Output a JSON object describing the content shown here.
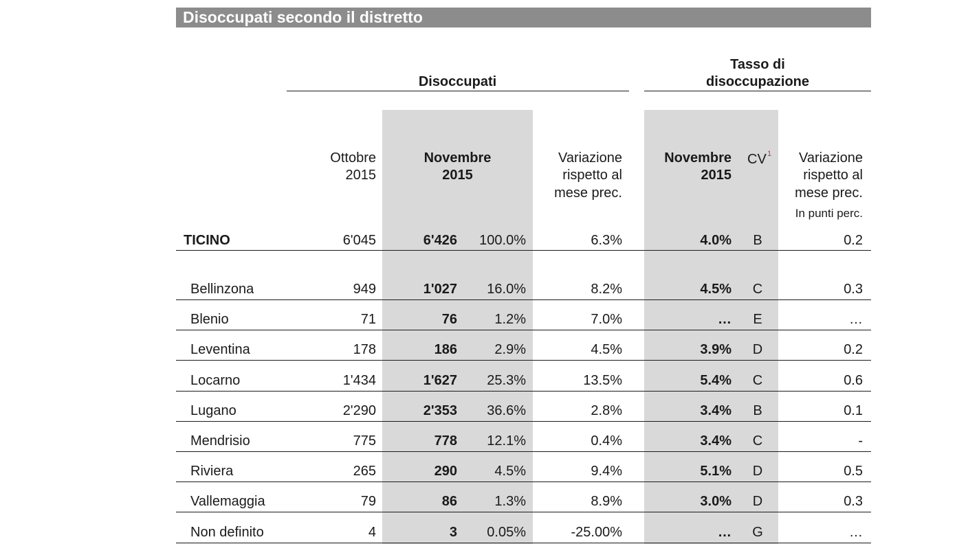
{
  "title": "Disoccupati secondo il distretto",
  "groups": {
    "disoccupati": "Disoccupati",
    "tasso_line1": "Tasso di",
    "tasso_line2": "disoccupazione"
  },
  "headers": {
    "ott_l1": "Ottobre",
    "ott_l2": "2015",
    "nov_l1": "Novembre",
    "nov_l2": "2015",
    "var_l1": "Variazione",
    "var_l2": "rispetto al",
    "var_l3": "mese prec.",
    "tnov_l1": "Novembre",
    "tnov_l2": "2015",
    "cv": "CV",
    "cv_sup": "1",
    "tvar_l1": "Variazione",
    "tvar_l2": "rispetto al",
    "tvar_l3": "mese prec.",
    "tvar_l4": "In punti perc."
  },
  "total": {
    "name": "TICINO",
    "ott": "6'045",
    "nov": "6'426",
    "pct": "100.0%",
    "var": "6.3%",
    "rate": "4.0%",
    "cv": "B",
    "rvar": "0.2"
  },
  "rows": [
    {
      "name": "Bellinzona",
      "ott": "949",
      "nov": "1'027",
      "pct": "16.0%",
      "var": "8.2%",
      "rate": "4.5%",
      "cv": "C",
      "rvar": "0.3"
    },
    {
      "name": "Blenio",
      "ott": "71",
      "nov": "76",
      "pct": "1.2%",
      "var": "7.0%",
      "rate": "…",
      "cv": "E",
      "rvar": "…"
    },
    {
      "name": "Leventina",
      "ott": "178",
      "nov": "186",
      "pct": "2.9%",
      "var": "4.5%",
      "rate": "3.9%",
      "cv": "D",
      "rvar": "0.2"
    },
    {
      "name": "Locarno",
      "ott": "1'434",
      "nov": "1'627",
      "pct": "25.3%",
      "var": "13.5%",
      "rate": "5.4%",
      "cv": "C",
      "rvar": "0.6"
    },
    {
      "name": "Lugano",
      "ott": "2'290",
      "nov": "2'353",
      "pct": "36.6%",
      "var": "2.8%",
      "rate": "3.4%",
      "cv": "B",
      "rvar": "0.1"
    },
    {
      "name": "Mendrisio",
      "ott": "775",
      "nov": "778",
      "pct": "12.1%",
      "var": "0.4%",
      "rate": "3.4%",
      "cv": "C",
      "rvar": "-"
    },
    {
      "name": "Riviera",
      "ott": "265",
      "nov": "290",
      "pct": "4.5%",
      "var": "9.4%",
      "rate": "5.1%",
      "cv": "D",
      "rvar": "0.5"
    },
    {
      "name": "Vallemaggia",
      "ott": "79",
      "nov": "86",
      "pct": "1.3%",
      "var": "8.9%",
      "rate": "3.0%",
      "cv": "D",
      "rvar": "0.3"
    },
    {
      "name": "Non definito",
      "ott": "4",
      "nov": "3",
      "pct": "0.05%",
      "var": "-25.00%",
      "rate": "…",
      "cv": "G",
      "rvar": "…"
    }
  ]
}
